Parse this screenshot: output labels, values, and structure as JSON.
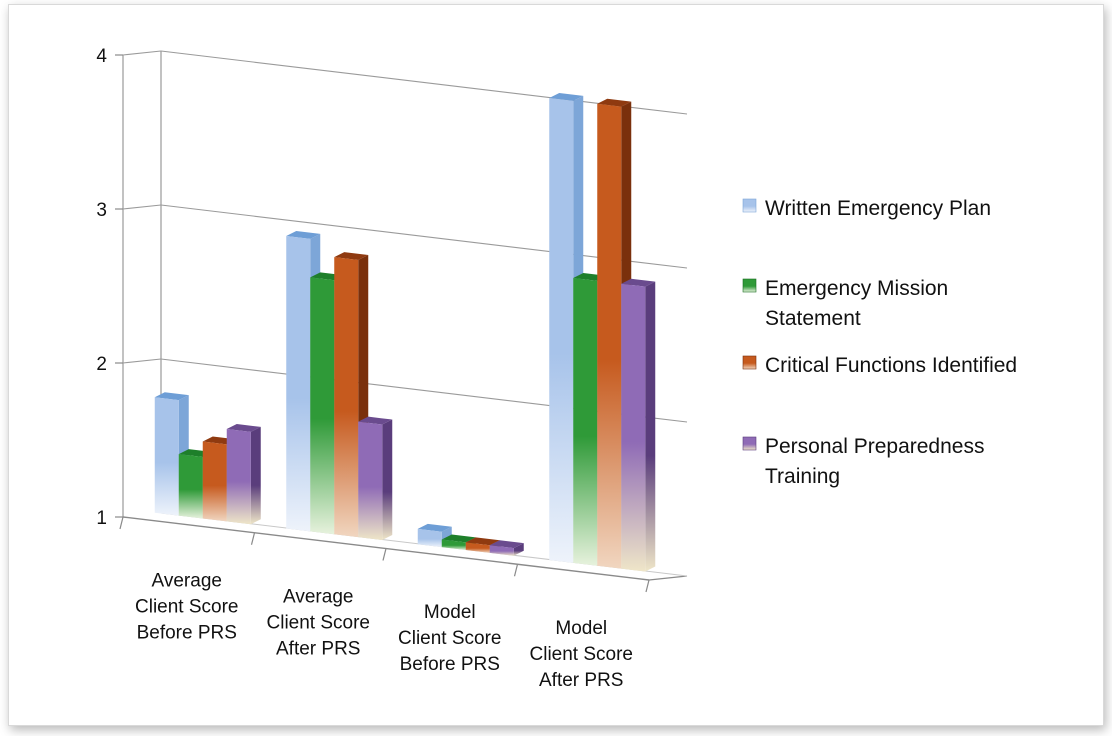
{
  "chart_data": {
    "type": "bar",
    "categories": [
      [
        "Average",
        "Client Score",
        "Before PRS"
      ],
      [
        "Average",
        "Client Score",
        "After PRS"
      ],
      [
        "Model",
        "Client Score",
        "Before PRS"
      ],
      [
        "Model",
        "Client Score",
        "After PRS"
      ]
    ],
    "series": [
      {
        "name": "Written Emergency Plan",
        "values": [
          1.75,
          2.9,
          1.1,
          4.0
        ],
        "color": {
          "top": "#6e9ed6",
          "front": "#a7c3ea",
          "side": "#7da6d8",
          "bottom": "#eef3fb"
        }
      },
      {
        "name": "Emergency Mission Statement",
        "values": [
          1.4,
          2.65,
          1.05,
          2.85
        ],
        "color": {
          "top": "#1e7f2a",
          "front": "#2f9a38",
          "side": "#1b6e22",
          "bottom": "#e7f2dd"
        }
      },
      {
        "name": "Critical Functions Identified",
        "values": [
          1.5,
          2.8,
          1.05,
          4.0
        ],
        "color": {
          "top": "#8f3a10",
          "front": "#c65a1e",
          "side": "#7a300c",
          "bottom": "#f1d6c0"
        }
      },
      {
        "name": "Personal Preparedness Training",
        "values": [
          1.6,
          1.75,
          1.05,
          2.85
        ],
        "color": {
          "top": "#6a4b8e",
          "front": "#8f6bb6",
          "side": "#5a3d7c",
          "bottom": "#efe6c8"
        }
      }
    ],
    "yticks": [
      "1",
      "2",
      "3",
      "4"
    ],
    "ylim": [
      1,
      4
    ],
    "grid": true,
    "legend_position": "right",
    "title": "",
    "xlabel": "",
    "ylabel": ""
  }
}
